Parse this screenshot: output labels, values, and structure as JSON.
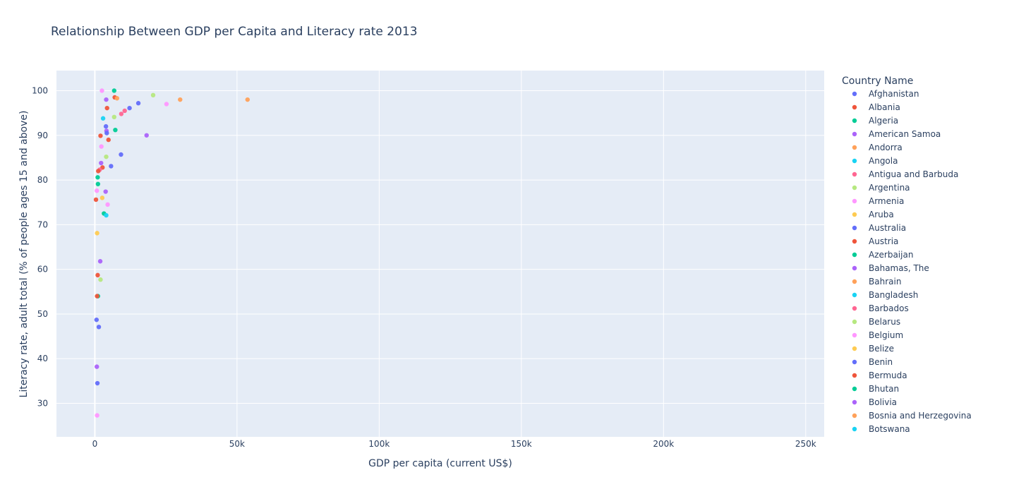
{
  "chart_data": {
    "type": "scatter",
    "title": "Relationship Between GDP per Capita and Literacy rate 2013",
    "xlabel": "GDP per capita (current US$)",
    "ylabel": "Literacy rate, adult total (% of people ages 15 and above)",
    "xlim": [
      -13500,
      256500
    ],
    "ylim": [
      22.5,
      104.5
    ],
    "x_ticks": [
      0,
      50000,
      100000,
      150000,
      200000,
      250000
    ],
    "x_tick_labels": [
      "0",
      "50k",
      "100k",
      "150k",
      "200k",
      "250k"
    ],
    "y_ticks": [
      30,
      40,
      50,
      60,
      70,
      80,
      90,
      100
    ],
    "y_tick_labels": [
      "30",
      "40",
      "50",
      "60",
      "70",
      "80",
      "90",
      "100"
    ],
    "grid": true,
    "legend_title": "Country Name",
    "legend_position": "right",
    "colors": [
      "#636efa",
      "#EF553B",
      "#00cc96",
      "#ab63fa",
      "#FFA15A",
      "#19d3f3",
      "#FF6692",
      "#B6E880",
      "#FF97FF",
      "#FECB52"
    ],
    "series": [
      {
        "name": "Afghanistan",
        "color": "#636efa",
        "x": [],
        "y": []
      },
      {
        "name": "Albania",
        "color": "#EF553B",
        "x": [],
        "y": []
      },
      {
        "name": "Algeria",
        "color": "#00cc96",
        "x": [],
        "y": []
      },
      {
        "name": "American Samoa",
        "color": "#ab63fa",
        "x": [],
        "y": []
      },
      {
        "name": "Andorra",
        "color": "#FFA15A",
        "x": [],
        "y": []
      },
      {
        "name": "Angola",
        "color": "#19d3f3",
        "x": [],
        "y": []
      },
      {
        "name": "Antigua and Barbuda",
        "color": "#FF6692",
        "x": [],
        "y": []
      },
      {
        "name": "Argentina",
        "color": "#B6E880",
        "x": [],
        "y": []
      },
      {
        "name": "Armenia",
        "color": "#FF97FF",
        "x": [],
        "y": []
      },
      {
        "name": "Aruba",
        "color": "#FECB52",
        "x": [],
        "y": []
      },
      {
        "name": "Australia",
        "color": "#636efa",
        "x": [],
        "y": []
      },
      {
        "name": "Austria",
        "color": "#EF553B",
        "x": [],
        "y": []
      },
      {
        "name": "Azerbaijan",
        "color": "#00cc96",
        "x": [],
        "y": []
      },
      {
        "name": "Bahamas, The",
        "color": "#ab63fa",
        "x": [],
        "y": []
      },
      {
        "name": "Bahrain",
        "color": "#FFA15A",
        "x": [],
        "y": []
      },
      {
        "name": "Bangladesh",
        "color": "#19d3f3",
        "x": [],
        "y": []
      },
      {
        "name": "Barbados",
        "color": "#FF6692",
        "x": [],
        "y": []
      },
      {
        "name": "Belarus",
        "color": "#B6E880",
        "x": [],
        "y": []
      },
      {
        "name": "Belgium",
        "color": "#FF97FF",
        "x": [],
        "y": []
      },
      {
        "name": "Belize",
        "color": "#FECB52",
        "x": [],
        "y": []
      },
      {
        "name": "Benin",
        "color": "#636efa",
        "x": [],
        "y": []
      },
      {
        "name": "Bermuda",
        "color": "#EF553B",
        "x": [],
        "y": []
      },
      {
        "name": "Bhutan",
        "color": "#00cc96",
        "x": [],
        "y": []
      },
      {
        "name": "Bolivia",
        "color": "#ab63fa",
        "x": [],
        "y": []
      },
      {
        "name": "Bosnia and Herzegovina",
        "color": "#FFA15A",
        "x": [],
        "y": []
      },
      {
        "name": "Botswana",
        "color": "#19d3f3",
        "x": [],
        "y": []
      }
    ],
    "other_points": [
      {
        "x": 6800,
        "y": 100.0,
        "color": "#00cc96"
      },
      {
        "x": 2500,
        "y": 100.0,
        "color": "#FF97FF"
      },
      {
        "x": 20500,
        "y": 99.0,
        "color": "#B6E880"
      },
      {
        "x": 7000,
        "y": 98.5,
        "color": "#EF553B"
      },
      {
        "x": 7800,
        "y": 98.3,
        "color": "#FFA15A"
      },
      {
        "x": 4000,
        "y": 98.0,
        "color": "#ab63fa"
      },
      {
        "x": 30000,
        "y": 98.0,
        "color": "#FFA15A"
      },
      {
        "x": 53700,
        "y": 98.0,
        "color": "#FFA15A"
      },
      {
        "x": 15300,
        "y": 97.2,
        "color": "#636efa"
      },
      {
        "x": 25200,
        "y": 97.0,
        "color": "#FF97FF"
      },
      {
        "x": 4300,
        "y": 96.1,
        "color": "#EF553B"
      },
      {
        "x": 12200,
        "y": 96.1,
        "color": "#636efa"
      },
      {
        "x": 10500,
        "y": 95.5,
        "color": "#FF6692"
      },
      {
        "x": 9300,
        "y": 94.8,
        "color": "#FF6692"
      },
      {
        "x": 6800,
        "y": 94.1,
        "color": "#B6E880"
      },
      {
        "x": 2900,
        "y": 93.8,
        "color": "#19d3f3"
      },
      {
        "x": 3900,
        "y": 92.0,
        "color": "#636efa"
      },
      {
        "x": 7200,
        "y": 91.2,
        "color": "#00cc96"
      },
      {
        "x": 4100,
        "y": 91.0,
        "color": "#ab63fa"
      },
      {
        "x": 4200,
        "y": 90.5,
        "color": "#636efa"
      },
      {
        "x": 18200,
        "y": 90.0,
        "color": "#ab63fa"
      },
      {
        "x": 2000,
        "y": 89.9,
        "color": "#EF553B"
      },
      {
        "x": 4800,
        "y": 89.0,
        "color": "#EF553B"
      },
      {
        "x": 2300,
        "y": 87.5,
        "color": "#FF97FF"
      },
      {
        "x": 9200,
        "y": 85.7,
        "color": "#636efa"
      },
      {
        "x": 4000,
        "y": 85.2,
        "color": "#B6E880"
      },
      {
        "x": 2200,
        "y": 83.8,
        "color": "#ab63fa"
      },
      {
        "x": 5700,
        "y": 83.1,
        "color": "#636efa"
      },
      {
        "x": 2700,
        "y": 82.8,
        "color": "#EF553B"
      },
      {
        "x": 1700,
        "y": 82.3,
        "color": "#FF6692"
      },
      {
        "x": 1200,
        "y": 82.0,
        "color": "#EF553B"
      },
      {
        "x": 1000,
        "y": 80.6,
        "color": "#00cc96"
      },
      {
        "x": 1100,
        "y": 79.1,
        "color": "#00cc96"
      },
      {
        "x": 700,
        "y": 77.6,
        "color": "#FF97FF"
      },
      {
        "x": 3800,
        "y": 77.4,
        "color": "#ab63fa"
      },
      {
        "x": 2600,
        "y": 76.0,
        "color": "#FECB52"
      },
      {
        "x": 400,
        "y": 75.6,
        "color": "#EF553B"
      },
      {
        "x": 4500,
        "y": 74.5,
        "color": "#FF97FF"
      },
      {
        "x": 3200,
        "y": 72.5,
        "color": "#00cc96"
      },
      {
        "x": 4000,
        "y": 72.1,
        "color": "#19d3f3"
      },
      {
        "x": 800,
        "y": 68.1,
        "color": "#FECB52"
      },
      {
        "x": 1900,
        "y": 61.8,
        "color": "#ab63fa"
      },
      {
        "x": 1000,
        "y": 58.7,
        "color": "#EF553B"
      },
      {
        "x": 2000,
        "y": 57.7,
        "color": "#B6E880"
      },
      {
        "x": 1100,
        "y": 54.0,
        "color": "#00cc96"
      },
      {
        "x": 800,
        "y": 54.0,
        "color": "#EF553B"
      },
      {
        "x": 600,
        "y": 48.7,
        "color": "#636efa"
      },
      {
        "x": 1400,
        "y": 47.1,
        "color": "#636efa"
      },
      {
        "x": 700,
        "y": 38.2,
        "color": "#ab63fa"
      },
      {
        "x": 900,
        "y": 34.5,
        "color": "#636efa"
      },
      {
        "x": 800,
        "y": 27.3,
        "color": "#FF97FF"
      }
    ]
  }
}
